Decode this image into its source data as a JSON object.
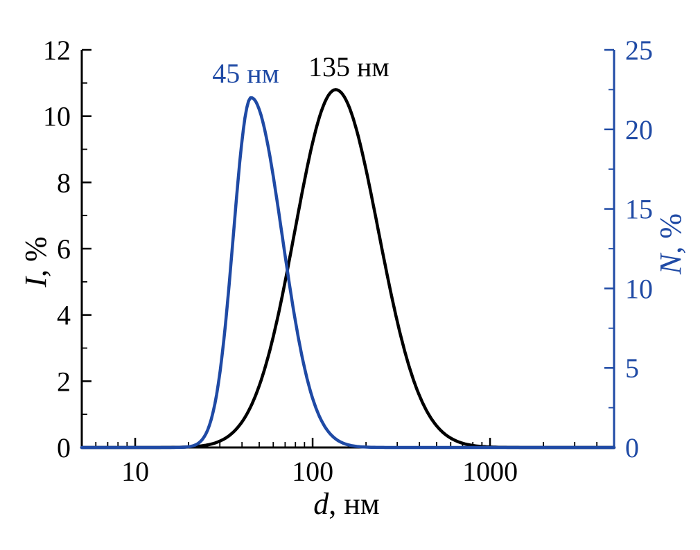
{
  "figure": {
    "background": "#ffffff"
  },
  "style": {
    "accent_blue": "#1f4aa5",
    "black": "#000000",
    "tick_direction": "in"
  },
  "chart_data": {
    "type": "line",
    "title": "",
    "xlabel": "d, нм",
    "ylabel_left": "I, %",
    "ylabel_right": "N, %",
    "axis_titles": {
      "left_var": "I",
      "left_rest": ", %",
      "right_var": "N",
      "right_rest": ", %",
      "x_var": "d",
      "x_rest": ", нм"
    },
    "x_scale": "log",
    "x_range": [
      5,
      5000
    ],
    "x_major_ticks": [
      10,
      100,
      1000
    ],
    "x_minor_ticks": [
      6,
      7,
      8,
      9,
      20,
      30,
      40,
      50,
      60,
      70,
      80,
      90,
      200,
      300,
      400,
      500,
      600,
      700,
      800,
      900,
      2000,
      3000,
      4000
    ],
    "y_left": {
      "label": "I, %",
      "range": [
        0,
        12
      ],
      "major_ticks": [
        0,
        2,
        4,
        6,
        8,
        10,
        12
      ],
      "minor_ticks": [
        1,
        3,
        5,
        7,
        9,
        11
      ],
      "color": "#000000"
    },
    "y_right": {
      "label": "N, %",
      "range": [
        0,
        25
      ],
      "major_ticks": [
        0,
        5,
        10,
        15,
        20,
        25
      ],
      "minor_ticks": [
        2.5,
        7.5,
        12.5,
        17.5,
        22.5
      ],
      "color": "#1f4aa5"
    },
    "grid": false,
    "legend": "none",
    "series": [
      {
        "name": "intensity-distribution",
        "label": "135 нм",
        "axis": "left",
        "color": "#000000",
        "peak_d_nm": 135,
        "peak_value": 10.8,
        "sigma_log_left": 0.23,
        "sigma_log_right": 0.24,
        "sampled_points": [
          [
            30,
            0.2
          ],
          [
            40,
            0.8
          ],
          [
            50,
            1.9
          ],
          [
            70,
            5.0
          ],
          [
            100,
            9.2
          ],
          [
            135,
            10.8
          ],
          [
            200,
            8.4
          ],
          [
            300,
            3.8
          ],
          [
            400,
            1.6
          ],
          [
            500,
            0.7
          ],
          [
            700,
            0.1
          ]
        ]
      },
      {
        "name": "number-distribution",
        "label": "45 нм",
        "axis": "right",
        "color": "#1f4aa5",
        "peak_d_nm": 45,
        "peak_value": 22,
        "sigma_log_left": 0.1,
        "sigma_log_right": 0.175,
        "sampled_points": [
          [
            25,
            0.9
          ],
          [
            30,
            4.7
          ],
          [
            35,
            12.1
          ],
          [
            40,
            19.3
          ],
          [
            45,
            22
          ],
          [
            55,
            19.4
          ],
          [
            70,
            12.1
          ],
          [
            100,
            3.1
          ],
          [
            150,
            0.3
          ],
          [
            200,
            0
          ]
        ]
      }
    ],
    "annotations": [
      {
        "text": "45 нм",
        "color": "#1f4aa5",
        "d_nm": 42,
        "value_left_axis": 11.3
      },
      {
        "text": "135 нм",
        "color": "#000000",
        "d_nm": 160,
        "value_left_axis": 11.5
      }
    ]
  }
}
